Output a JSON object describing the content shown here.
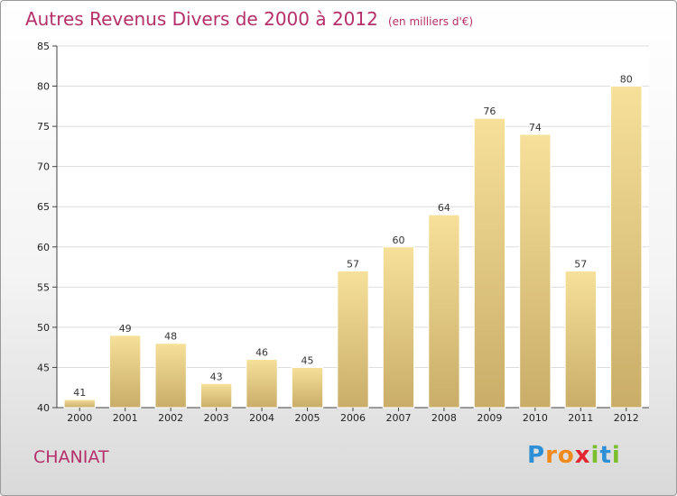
{
  "title": "Autres Revenus Divers de 2000 à 2012",
  "subtitle": "(en milliers d'€)",
  "commune": "CHANIAT",
  "logo": {
    "text": "Proxiti",
    "letters": [
      "P",
      "r",
      "o",
      "x",
      "i",
      "t",
      "i"
    ],
    "colors": [
      "#2d8fd6",
      "#f08a1c",
      "#f08a1c",
      "#e3262f",
      "#7bbf2f",
      "#2d8fd6",
      "#7bbf2f"
    ]
  },
  "colors": {
    "title": "#b5306a",
    "bar_light": "#f6e09a",
    "bar_dark": "#c9ad68",
    "grid": "#dddddd",
    "axis": "#444444"
  },
  "chart_data": {
    "type": "bar",
    "categories": [
      "2000",
      "2001",
      "2002",
      "2003",
      "2004",
      "2005",
      "2006",
      "2007",
      "2008",
      "2009",
      "2010",
      "2011",
      "2012"
    ],
    "values": [
      41,
      49,
      48,
      43,
      46,
      45,
      57,
      60,
      64,
      76,
      74,
      57,
      80
    ],
    "ylim": [
      40,
      85
    ],
    "yticks": [
      40,
      45,
      50,
      55,
      60,
      65,
      70,
      75,
      80,
      85
    ],
    "grid": "horizontal",
    "data_labels": true
  }
}
